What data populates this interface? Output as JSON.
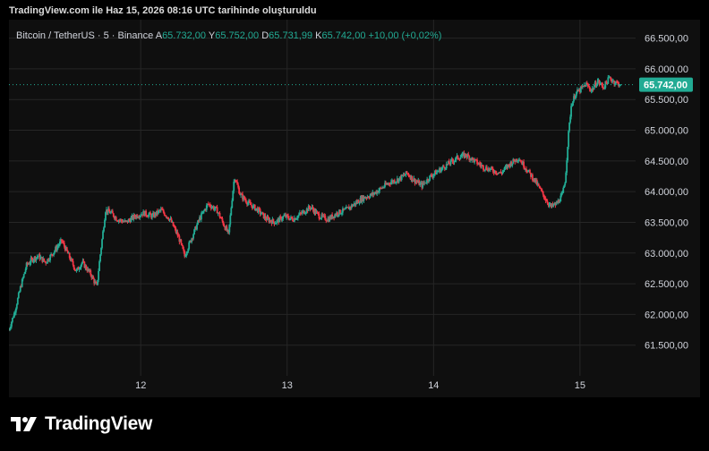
{
  "caption": "TradingView.com ile Haz 15, 2026 08:16 UTC tarihinde oluşturuldu",
  "legend": {
    "symbol": "Bitcoin / TetherUS · 5 · Binance",
    "open_label": "A",
    "open": "65.732,00",
    "high_label": "Y",
    "high": "65.752,00",
    "low_label": "D",
    "low": "65.731,99",
    "close_label": "K",
    "close": "65.742,00",
    "change": "+10,00 (+0,02%)"
  },
  "price_tag": "65.742,00",
  "brand": "TradingView",
  "colors": {
    "up": "#22ab94",
    "down": "#f23645",
    "grid": "#262626",
    "background": "#0f0f0f",
    "price_tag": "#22ab94"
  },
  "chart_data": {
    "type": "candlestick",
    "interval": "5",
    "x_ticks": [
      "12",
      "13",
      "14",
      "15"
    ],
    "y_ticks": [
      "61.500,00",
      "62.000,00",
      "62.500,00",
      "63.000,00",
      "63.500,00",
      "64.000,00",
      "64.500,00",
      "65.000,00",
      "65.500,00",
      "66.000,00",
      "66.500,00"
    ],
    "y_tick_values": [
      61500,
      62000,
      62500,
      63000,
      63500,
      64000,
      64500,
      65000,
      65500,
      66000,
      66500
    ],
    "ylim": [
      61000,
      66800
    ],
    "x_range_days": [
      11.1,
      15.82
    ],
    "last_price": 65742,
    "price_path": [
      [
        11.1,
        61750
      ],
      [
        11.14,
        62050
      ],
      [
        11.18,
        62450
      ],
      [
        11.22,
        62800
      ],
      [
        11.26,
        62900
      ],
      [
        11.3,
        62950
      ],
      [
        11.35,
        62850
      ],
      [
        11.4,
        63000
      ],
      [
        11.46,
        63200
      ],
      [
        11.52,
        62900
      ],
      [
        11.56,
        62700
      ],
      [
        11.6,
        62850
      ],
      [
        11.66,
        62650
      ],
      [
        11.7,
        62450
      ],
      [
        11.72,
        62900
      ],
      [
        11.76,
        63700
      ],
      [
        11.8,
        63650
      ],
      [
        11.84,
        63550
      ],
      [
        11.9,
        63500
      ],
      [
        11.96,
        63600
      ],
      [
        12.02,
        63650
      ],
      [
        12.08,
        63600
      ],
      [
        12.14,
        63700
      ],
      [
        12.2,
        63550
      ],
      [
        12.26,
        63250
      ],
      [
        12.3,
        62950
      ],
      [
        12.34,
        63200
      ],
      [
        12.4,
        63550
      ],
      [
        12.46,
        63800
      ],
      [
        12.52,
        63700
      ],
      [
        12.56,
        63500
      ],
      [
        12.6,
        63300
      ],
      [
        12.62,
        63800
      ],
      [
        12.64,
        64250
      ],
      [
        12.68,
        63950
      ],
      [
        12.74,
        63800
      ],
      [
        12.8,
        63700
      ],
      [
        12.86,
        63550
      ],
      [
        12.92,
        63500
      ],
      [
        12.98,
        63600
      ],
      [
        13.04,
        63550
      ],
      [
        13.1,
        63650
      ],
      [
        13.16,
        63750
      ],
      [
        13.22,
        63600
      ],
      [
        13.28,
        63550
      ],
      [
        13.34,
        63650
      ],
      [
        13.4,
        63700
      ],
      [
        13.46,
        63800
      ],
      [
        13.52,
        63900
      ],
      [
        13.58,
        63950
      ],
      [
        13.64,
        64050
      ],
      [
        13.7,
        64150
      ],
      [
        13.76,
        64200
      ],
      [
        13.82,
        64300
      ],
      [
        13.86,
        64200
      ],
      [
        13.92,
        64100
      ],
      [
        13.98,
        64250
      ],
      [
        14.04,
        64350
      ],
      [
        14.1,
        64450
      ],
      [
        14.16,
        64550
      ],
      [
        14.22,
        64600
      ],
      [
        14.28,
        64500
      ],
      [
        14.34,
        64400
      ],
      [
        14.4,
        64350
      ],
      [
        14.46,
        64300
      ],
      [
        14.52,
        64450
      ],
      [
        14.58,
        64550
      ],
      [
        14.64,
        64350
      ],
      [
        14.7,
        64150
      ],
      [
        14.76,
        63900
      ],
      [
        14.8,
        63750
      ],
      [
        14.84,
        63800
      ],
      [
        14.88,
        63950
      ],
      [
        14.9,
        64200
      ],
      [
        14.92,
        64900
      ],
      [
        14.94,
        65400
      ],
      [
        14.97,
        65600
      ],
      [
        15.0,
        65650
      ],
      [
        15.04,
        65750
      ],
      [
        15.08,
        65650
      ],
      [
        15.12,
        65800
      ],
      [
        15.16,
        65700
      ],
      [
        15.2,
        65850
      ],
      [
        15.24,
        65780
      ],
      [
        15.28,
        65742
      ]
    ]
  }
}
